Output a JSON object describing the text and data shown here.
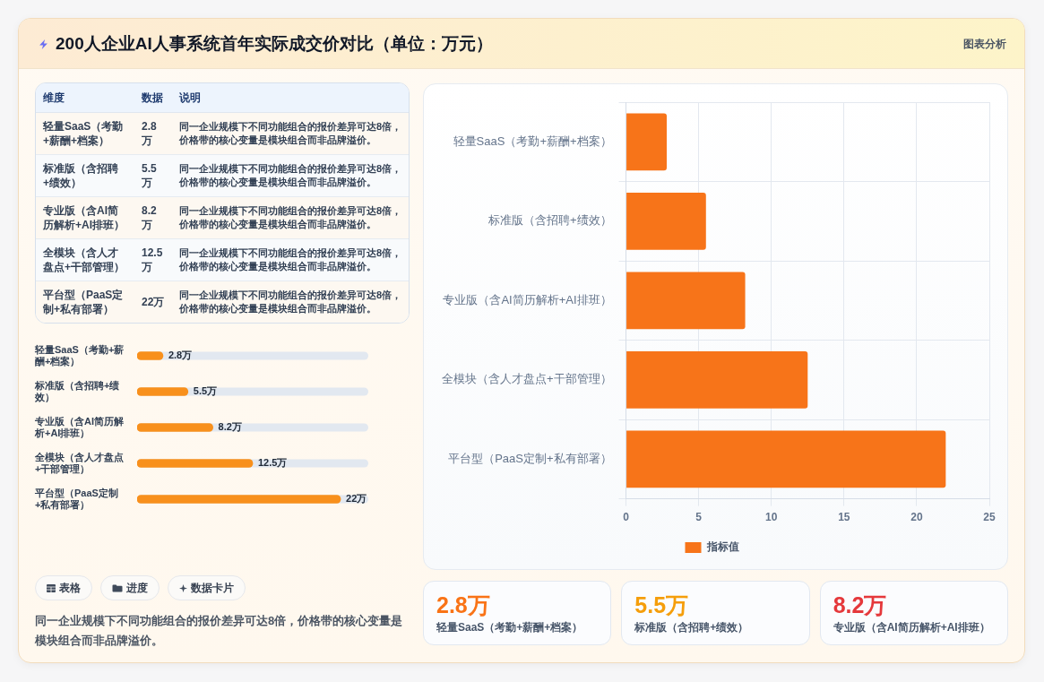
{
  "chart_data": [
    {
      "type": "other",
      "title": "200人企业AI人事系统首年实际成交价对比（单位：万元）",
      "annotations": [
        "图表分析"
      ]
    },
    {
      "type": "other",
      "categories": [
        "轻量SaaS（考勤+薪酬+档案）",
        "标准版（含招聘+绩效）",
        "专业版（含AI简历解析+AI排班）",
        "全模块（含人才盘点+干部管理）",
        "平台型（PaaS定制+私有部署）"
      ],
      "values": [
        2.8,
        5.5,
        8.2,
        12.5,
        22
      ],
      "value_labels": [
        "2.8万",
        "5.5万",
        "8.2万",
        "12.5万",
        "22万"
      ],
      "annotations": [
        "维度",
        "数据",
        "说明",
        "同一企业规模下不同功能组合的报价差异可达8倍，价格带的核心变量是模块组合而非品牌溢价。",
        "同一企业规模下不同功能组合的报价差异可达8倍，价格带的核心变量是模块组合而非品牌溢价。",
        "同一企业规模下不同功能组合的报价差异可达8倍，价格带的核心变量是模块组合而非品牌溢价。",
        "同一企业规模下不同功能组合的报价差异可达8倍，价格带的核心变量是模块组合而非品牌溢价。",
        "同一企业规模下不同功能组合的报价差异可达8倍，价格带的核心变量是模块组合而非品牌溢价。"
      ]
    },
    {
      "type": "bar",
      "orientation": "horizontal",
      "categories": [
        "轻量SaaS（考勤+薪酬+档案）",
        "标准版（含招聘+绩效）",
        "专业版（含AI简历解析+AI排班）",
        "全模块（含人才盘点+干部管理）",
        "平台型（PaaS定制+私有部署）"
      ],
      "values": [
        2.8,
        5.5,
        8.2,
        12.5,
        22
      ],
      "color": "#f8901c",
      "value_labels": [
        "2.8万",
        "5.5万",
        "8.2万",
        "12.5万",
        "22万"
      ]
    },
    {
      "type": "other",
      "annotations": [
        "表格",
        "进度",
        "数据卡片",
        "同一企业规模下不同功能组合的报价差异可达8倍，价格带的核心变量是模块组合而非品牌溢价。"
      ]
    },
    {
      "type": "bar",
      "orientation": "horizontal",
      "categories": [
        "轻量SaaS（考勤+薪酬+档案）",
        "标准版（含招聘+绩效）",
        "专业版（含AI简历解析+AI排班）",
        "全模块（含人才盘点+干部管理）",
        "平台型（PaaS定制+私有部署）"
      ],
      "series": [
        {
          "name": "指标值",
          "color": "#f77419",
          "values": [
            2.8,
            5.5,
            8.2,
            12.5,
            22
          ]
        }
      ],
      "xlim": [
        0,
        25
      ],
      "xticks": [
        0,
        5,
        10,
        15,
        20,
        25
      ],
      "grid": true,
      "legend": "bottom"
    },
    {
      "type": "other",
      "annotations": [
        "2.8万",
        "轻量SaaS（考勤+薪酬+档案）",
        "5.5万",
        "标准版（含招聘+绩效）",
        "8.2万",
        "专业版（含AI简历解析+AI排班）"
      ],
      "colors": [
        "#f97316",
        "#f59e0b",
        "#e5383b"
      ]
    }
  ]
}
